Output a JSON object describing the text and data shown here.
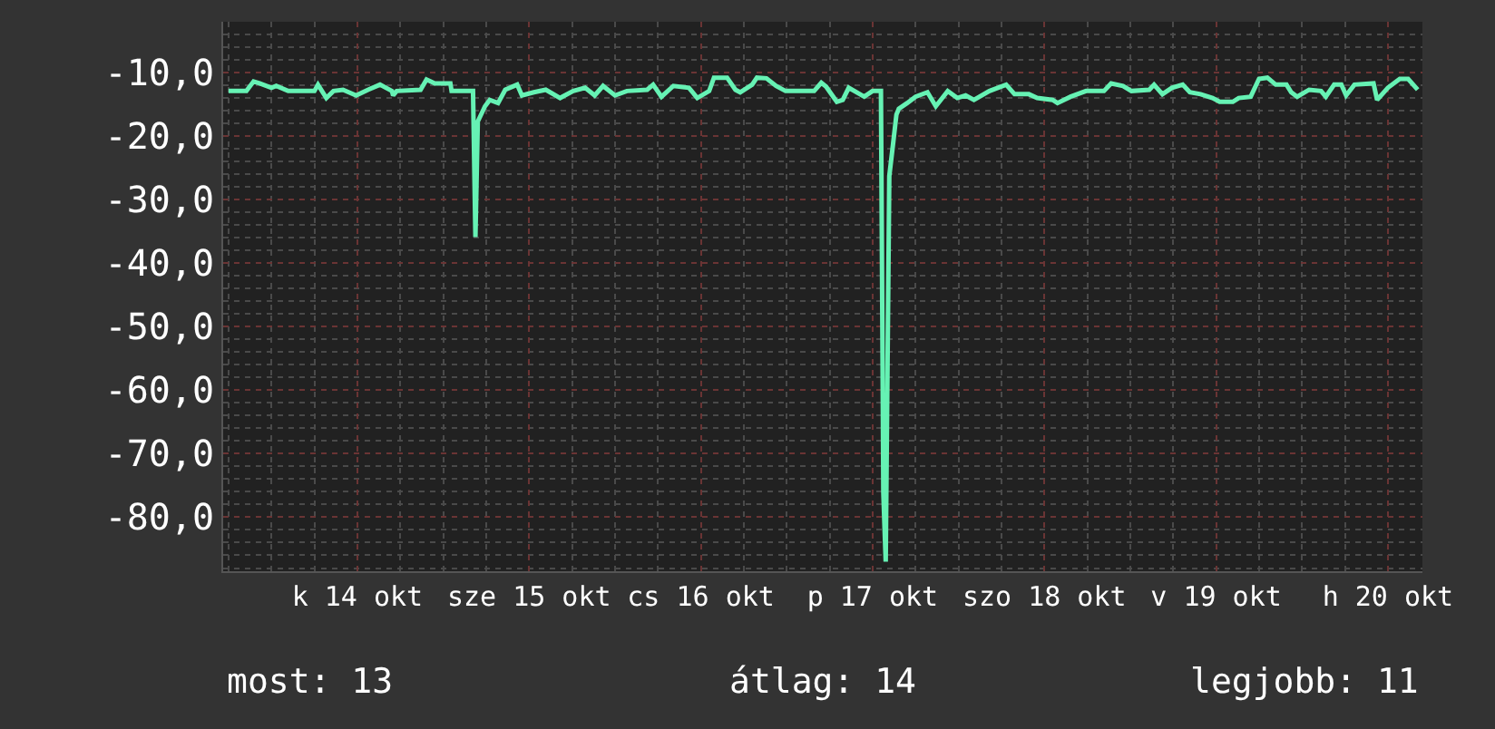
{
  "chart_data": {
    "type": "line",
    "x": [
      "--10-13T18:00",
      "--10-13T20:30",
      "--10-13T21:30",
      "--10-13T22:20",
      "--10-14T00:00",
      "--10-14T00:40",
      "--10-14T02:20",
      "--10-14T06:00",
      "--10-14T06:30",
      "--10-14T07:40",
      "--10-14T08:40",
      "--10-14T10:00",
      "--10-14T11:50",
      "--10-14T13:30",
      "--10-14T15:10",
      "--10-14T16:50",
      "--10-14T17:00",
      "--10-14T17:30",
      "--10-14T20:50",
      "--10-14T21:40",
      "--10-14T22:50",
      "--10-15T01:00",
      "--10-15T01:10",
      "--10-15T04:10",
      "--10-15T04:30",
      "--10-15T04:50",
      "--10-15T05:50",
      "--10-15T06:30",
      "--10-15T07:40",
      "--10-15T08:40",
      "--10-15T10:20",
      "--10-15T11:00",
      "--10-15T12:40",
      "--10-15T14:20",
      "--10-15T16:20",
      "--10-15T18:10",
      "--10-15T19:50",
      "--10-15T21:10",
      "--10-15T22:20",
      "--10-16T00:00",
      "--10-16T01:40",
      "--10-16T04:30",
      "--10-16T05:20",
      "--10-16T06:30",
      "--10-16T08:10",
      "--10-16T10:20",
      "--10-16T11:30",
      "--10-16T13:10",
      "--10-16T13:50",
      "--10-16T15:40",
      "--10-16T16:50",
      "--10-16T17:30",
      "--10-16T19:10",
      "--10-16T19:50",
      "--10-16T21:10",
      "--10-16T22:30",
      "--10-16T23:50",
      "--10-17T03:50",
      "--10-17T04:50",
      "--10-17T05:30",
      "--10-17T07:00",
      "--10-17T07:50",
      "--10-17T08:40",
      "--10-17T10:50",
      "--10-17T12:00",
      "--10-17T13:10",
      "--10-17T13:30",
      "--10-17T13:50",
      "--10-17T14:20",
      "--10-17T14:50",
      "--10-17T15:20",
      "--10-17T15:40",
      "--10-17T16:50",
      "--10-17T18:00",
      "--10-17T19:40",
      "--10-17T20:50",
      "--10-17T22:30",
      "--10-17T23:50",
      "--10-18T01:00",
      "--10-18T02:10",
      "--10-18T04:20",
      "--10-18T06:40",
      "--10-18T07:50",
      "--10-18T09:50",
      "--10-18T11:00",
      "--10-18T13:10",
      "--10-18T13:50",
      "--10-18T15:40",
      "--10-18T17:50",
      "--10-18T20:20",
      "--10-18T21:20",
      "--10-18T23:00",
      "--10-19T00:10",
      "--10-19T02:40",
      "--10-19T03:20",
      "--10-19T04:30",
      "--10-19T05:50",
      "--10-19T07:20",
      "--10-19T08:20",
      "--10-19T09:50",
      "--10-19T11:30",
      "--10-19T12:30",
      "--10-19T14:20",
      "--10-19T15:10",
      "--10-19T16:50",
      "--10-19T18:00",
      "--10-19T19:10",
      "--10-19T20:20",
      "--10-19T21:50",
      "--10-19T22:30",
      "--10-19T23:20",
      "--10-20T01:00",
      "--10-20T02:40",
      "--10-20T03:20",
      "--10-20T04:30",
      "--10-20T05:30",
      "--10-20T06:10",
      "--10-20T07:20",
      "--10-20T10:00",
      "--10-20T10:30",
      "--10-20T12:00",
      "--10-20T13:40",
      "--10-20T14:50",
      "--10-20T16:10"
    ],
    "series": [
      {
        "color": "#66f2b4",
        "values": [
          -12.9,
          -12.9,
          -11.4,
          -11.7,
          -12.4,
          -12.1,
          -12.9,
          -12.9,
          -11.9,
          -14.0,
          -12.9,
          -12.7,
          -13.6,
          -12.7,
          -11.9,
          -12.9,
          -13.6,
          -12.9,
          -12.7,
          -11.1,
          -11.7,
          -11.7,
          -12.9,
          -12.9,
          -35.9,
          -17.7,
          -15.3,
          -14.3,
          -14.8,
          -12.7,
          -11.9,
          -13.6,
          -13.1,
          -12.7,
          -14.0,
          -12.9,
          -12.4,
          -13.6,
          -12.1,
          -13.6,
          -12.9,
          -12.7,
          -11.9,
          -13.8,
          -12.1,
          -12.4,
          -14.0,
          -12.9,
          -10.8,
          -10.8,
          -12.7,
          -13.1,
          -11.9,
          -10.8,
          -10.9,
          -12.1,
          -12.9,
          -12.9,
          -11.6,
          -12.2,
          -14.6,
          -14.3,
          -12.4,
          -13.8,
          -12.9,
          -12.9,
          -76.1,
          -87,
          -26.3,
          -21.5,
          -16.6,
          -15.7,
          -14.8,
          -13.8,
          -13.1,
          -15.3,
          -12.9,
          -14.0,
          -13.6,
          -14.3,
          -12.9,
          -11.9,
          -13.4,
          -13.4,
          -14.0,
          -14.3,
          -14.8,
          -13.8,
          -12.9,
          -12.9,
          -11.7,
          -12.1,
          -12.9,
          -12.7,
          -11.9,
          -13.4,
          -12.4,
          -11.9,
          -13.1,
          -13.4,
          -14.0,
          -14.6,
          -14.6,
          -14.0,
          -13.8,
          -11.0,
          -10.8,
          -11.9,
          -11.9,
          -13.1,
          -13.8,
          -12.7,
          -12.9,
          -13.8,
          -11.9,
          -11.9,
          -13.6,
          -11.9,
          -11.7,
          -14.3,
          -12.4,
          -11.0,
          -11.0,
          -12.7
        ]
      }
    ],
    "xlim": [
      "--10-13T17:15",
      "--10-20T16:50"
    ],
    "ylim": [
      -88.5,
      -2
    ],
    "xticks": [
      {
        "value": "--10-14T12:00",
        "label": "k 14 okt"
      },
      {
        "value": "--10-15T12:00",
        "label": "sze 15 okt"
      },
      {
        "value": "--10-16T12:00",
        "label": "cs 16 okt"
      },
      {
        "value": "--10-17T12:00",
        "label": "p 17 okt"
      },
      {
        "value": "--10-18T12:00",
        "label": "szo 18 okt"
      },
      {
        "value": "--10-19T12:00",
        "label": "v 19 okt"
      },
      {
        "value": "--10-20T12:00",
        "label": "h 20 okt"
      }
    ],
    "yticks": [
      {
        "value": -10,
        "label": "-10,0"
      },
      {
        "value": -20,
        "label": "-20,0"
      },
      {
        "value": -30,
        "label": "-30,0"
      },
      {
        "value": -40,
        "label": "-40,0"
      },
      {
        "value": -50,
        "label": "-50,0"
      },
      {
        "value": -60,
        "label": "-60,0"
      },
      {
        "value": -70,
        "label": "-70,0"
      },
      {
        "value": -80,
        "label": "-80,0"
      }
    ],
    "grid": true,
    "marker": "none",
    "line_style": "solid",
    "annotations": [
      "most: 13",
      "átlag: 14",
      "legjobb: 11"
    ]
  }
}
